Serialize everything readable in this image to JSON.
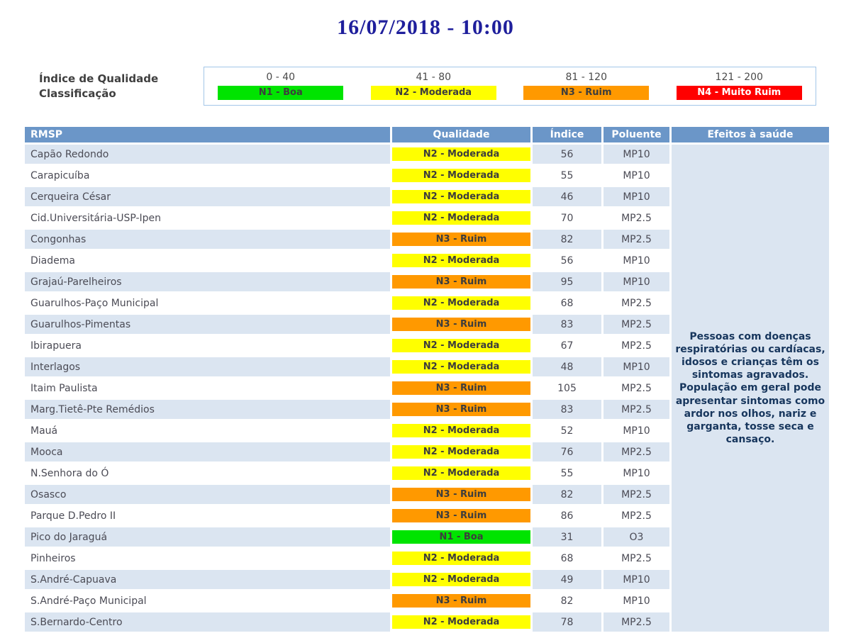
{
  "title": "16/07/2018 - 10:00",
  "legend": {
    "label_line1": "Índice de Qualidade",
    "label_line2": "Classificação",
    "items": [
      {
        "range": "0 - 40",
        "label": "N1 - Boa"
      },
      {
        "range": "41 - 80",
        "label": "N2 - Moderada"
      },
      {
        "range": "81 - 120",
        "label": "N3 - Ruim"
      },
      {
        "range": "121 - 200",
        "label": "N4 - Muito Ruim"
      }
    ]
  },
  "quality_levels": {
    "N1": {
      "bg": "#00e400",
      "fg": "#3d3d3d"
    },
    "N2": {
      "bg": "#ffff00",
      "fg": "#3d3d3d"
    },
    "N3": {
      "bg": "#ff9900",
      "fg": "#3d3d3d"
    },
    "N4": {
      "bg": "#ff0000",
      "fg": "#ffffff"
    }
  },
  "colors": {
    "title_text": "#1f1f9c",
    "header_bg": "#6b96c8",
    "row_stripe": "#dbe5f1",
    "health_text": "#17365d",
    "legend_border": "#a3c6e8"
  },
  "table": {
    "headers": [
      "RMSP",
      "Qualidade",
      "Índice",
      "Poluente",
      "Efeitos à saúde"
    ],
    "health_effects": "Pessoas com doenças respiratórias ou cardíacas, idosos e crianças têm os sintomas agravados. População em geral pode apresentar sintomas como ardor nos olhos, nariz e garganta, tosse seca e cansaço.",
    "rows": [
      {
        "station": "Capão Redondo",
        "quality": "N2 - Moderada",
        "index": "56",
        "pollutant": "MP10"
      },
      {
        "station": "Carapicuíba",
        "quality": "N2 - Moderada",
        "index": "55",
        "pollutant": "MP10"
      },
      {
        "station": "Cerqueira César",
        "quality": "N2 - Moderada",
        "index": "46",
        "pollutant": "MP10"
      },
      {
        "station": "Cid.Universitária-USP-Ipen",
        "quality": "N2 - Moderada",
        "index": "70",
        "pollutant": "MP2.5"
      },
      {
        "station": "Congonhas",
        "quality": "N3 - Ruim",
        "index": "82",
        "pollutant": "MP2.5"
      },
      {
        "station": "Diadema",
        "quality": "N2 - Moderada",
        "index": "56",
        "pollutant": "MP10"
      },
      {
        "station": "Grajaú-Parelheiros",
        "quality": "N3 - Ruim",
        "index": "95",
        "pollutant": "MP10"
      },
      {
        "station": "Guarulhos-Paço Municipal",
        "quality": "N2 - Moderada",
        "index": "68",
        "pollutant": "MP2.5"
      },
      {
        "station": "Guarulhos-Pimentas",
        "quality": "N3 - Ruim",
        "index": "83",
        "pollutant": "MP2.5"
      },
      {
        "station": "Ibirapuera",
        "quality": "N2 - Moderada",
        "index": "67",
        "pollutant": "MP2.5"
      },
      {
        "station": "Interlagos",
        "quality": "N2 - Moderada",
        "index": "48",
        "pollutant": "MP10"
      },
      {
        "station": "Itaim Paulista",
        "quality": "N3 - Ruim",
        "index": "105",
        "pollutant": "MP2.5"
      },
      {
        "station": "Marg.Tietê-Pte Remédios",
        "quality": "N3 - Ruim",
        "index": "83",
        "pollutant": "MP2.5"
      },
      {
        "station": "Mauá",
        "quality": "N2 - Moderada",
        "index": "52",
        "pollutant": "MP10"
      },
      {
        "station": "Mooca",
        "quality": "N2 - Moderada",
        "index": "76",
        "pollutant": "MP2.5"
      },
      {
        "station": "N.Senhora do Ó",
        "quality": "N2 - Moderada",
        "index": "55",
        "pollutant": "MP10"
      },
      {
        "station": "Osasco",
        "quality": "N3 - Ruim",
        "index": "82",
        "pollutant": "MP2.5"
      },
      {
        "station": "Parque D.Pedro II",
        "quality": "N3 - Ruim",
        "index": "86",
        "pollutant": "MP2.5"
      },
      {
        "station": "Pico do Jaraguá",
        "quality": "N1 - Boa",
        "index": "31",
        "pollutant": "O3"
      },
      {
        "station": "Pinheiros",
        "quality": "N2 - Moderada",
        "index": "68",
        "pollutant": "MP2.5"
      },
      {
        "station": "S.André-Capuava",
        "quality": "N2 - Moderada",
        "index": "49",
        "pollutant": "MP10"
      },
      {
        "station": "S.André-Paço Municipal",
        "quality": "N3 - Ruim",
        "index": "82",
        "pollutant": "MP10"
      },
      {
        "station": "S.Bernardo-Centro",
        "quality": "N2 - Moderada",
        "index": "78",
        "pollutant": "MP2.5"
      }
    ]
  }
}
